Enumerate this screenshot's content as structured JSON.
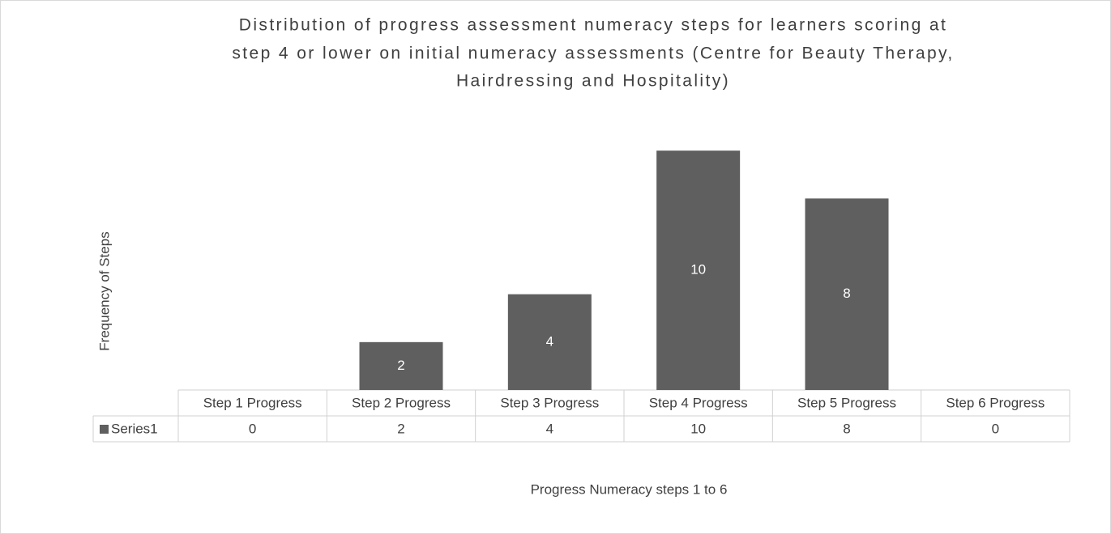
{
  "chart_data": {
    "type": "bar",
    "title": [
      "Distribution of progress assessment numeracy steps for learners scoring at",
      "step 4 or lower on initial numeracy assessments (Centre for Beauty Therapy,",
      "Hairdressing and Hospitality)"
    ],
    "y_label": "Frequency of Steps",
    "x_label": "Progress Numeracy steps 1 to 6",
    "categories": [
      "Step 1 Progress",
      "Step 2 Progress",
      "Step 3 Progress",
      "Step 4 Progress",
      "Step 5 Progress",
      "Step 6 Progress"
    ],
    "series": [
      {
        "name": "Series1",
        "color": "#5f5f5f",
        "values": [
          0,
          2,
          4,
          10,
          8,
          0
        ]
      }
    ],
    "ylim": [
      0,
      12
    ]
  }
}
